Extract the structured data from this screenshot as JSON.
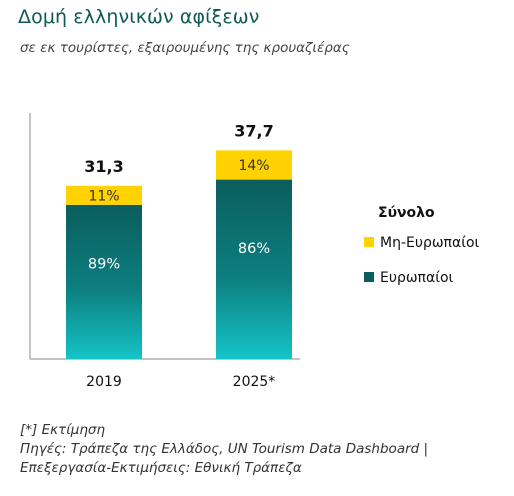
{
  "title": "Δομή ελληνικών αφίξεων",
  "subtitle": "σε εκ τουρίστες, εξαιρουμένης της κρουαζιέρας",
  "notes": {
    "estimate": "[*] Εκτίμηση",
    "source_line1": "Πηγές: Τράπεζα της Ελλάδος, UN Tourism Data Dashboard |",
    "source_line2": "Επεξεργασία-Εκτιμήσεις: Εθνική Τράπεζα"
  },
  "colors": {
    "title": "#0e5a56",
    "european_top": "#0b5d5d",
    "european_bottom": "#14c3c6",
    "non_european": "#ffd200",
    "axis": "#b0b0b0"
  },
  "chart_data": {
    "type": "bar",
    "stacked": true,
    "categories": [
      "2019",
      "2025*"
    ],
    "totals": [
      31.3,
      37.7
    ],
    "total_labels": [
      "31,3",
      "37,7"
    ],
    "legend_title": "Σύνολο",
    "legend_position": "right",
    "series": [
      {
        "name": "Ευρωπαίοι",
        "share_pct": [
          89,
          86
        ],
        "labels": [
          "89%",
          "86%"
        ],
        "color": "#0b5d5d"
      },
      {
        "name": "Μη-Ευρωπαίοι",
        "share_pct": [
          11,
          14
        ],
        "labels": [
          "11%",
          "14%"
        ],
        "color": "#ffd200"
      }
    ],
    "legend_order": [
      "Μη-Ευρωπαίοι",
      "Ευρωπαίοι"
    ],
    "ylim": [
      0,
      45
    ],
    "grid": false,
    "xlabel": "",
    "ylabel": ""
  }
}
